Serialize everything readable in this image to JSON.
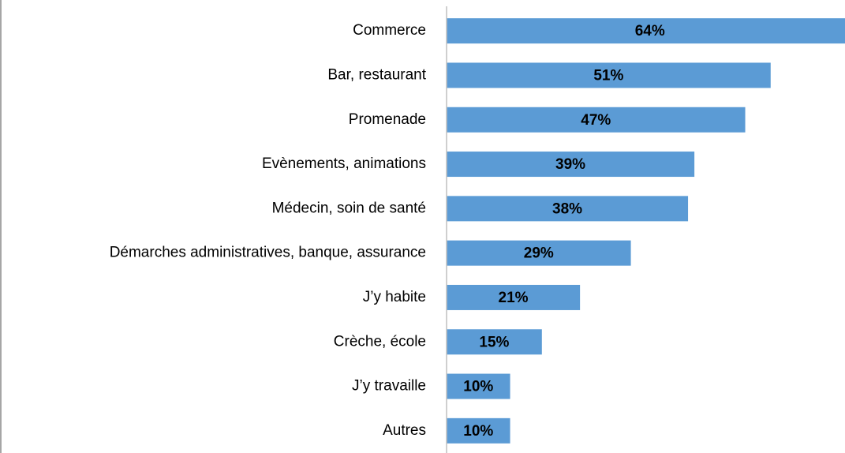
{
  "chart_data": {
    "type": "bar",
    "orientation": "horizontal",
    "categories": [
      "Commerce",
      "Bar, restaurant",
      "Promenade",
      "Evènements, animations",
      "Médecin, soin de santé",
      "Démarches administratives, banque, assurance",
      "J’y habite",
      "Crèche, école",
      "J’y travaille",
      "Autres"
    ],
    "values": [
      64,
      51,
      47,
      39,
      38,
      29,
      21,
      15,
      10,
      10
    ],
    "value_labels": [
      "64%",
      "51%",
      "47%",
      "39%",
      "38%",
      "29%",
      "21%",
      "15%",
      "10%",
      "10%"
    ],
    "color": "#5b9bd5",
    "xlim": [
      0,
      62.7
    ]
  }
}
